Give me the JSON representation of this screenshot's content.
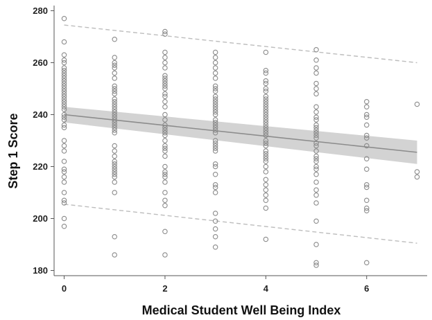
{
  "chart_data": {
    "type": "scatter",
    "title": "",
    "xlabel": "Medical Student Well Being Index",
    "ylabel": "Step 1 Score",
    "xlim": [
      -0.2,
      7.2
    ],
    "ylim": [
      178,
      282
    ],
    "xticks": [
      0,
      2,
      4,
      6
    ],
    "yticks": [
      180,
      200,
      220,
      240,
      260,
      280
    ],
    "grid": false,
    "colors": {
      "points": "#8a8a8a",
      "fit_line": "#8c8c8c",
      "ci_band": "#d3d3d3",
      "prediction_lines": "#bdbdbd"
    },
    "fit_line": {
      "x": [
        0,
        7
      ],
      "y": [
        240,
        225.5
      ]
    },
    "confidence_band": {
      "x": [
        0,
        7
      ],
      "lower": [
        237,
        221
      ],
      "upper": [
        243,
        230
      ]
    },
    "prediction_upper": {
      "x": [
        0,
        7
      ],
      "y": [
        274.5,
        260
      ]
    },
    "prediction_lower": {
      "x": [
        0,
        7
      ],
      "y": [
        205.5,
        190.5
      ]
    },
    "points": [
      [
        0,
        277
      ],
      [
        0,
        268
      ],
      [
        0,
        263
      ],
      [
        0,
        261
      ],
      [
        0,
        260
      ],
      [
        0,
        258
      ],
      [
        0,
        257
      ],
      [
        0,
        256
      ],
      [
        0,
        255
      ],
      [
        0,
        254
      ],
      [
        0,
        253
      ],
      [
        0,
        252
      ],
      [
        0,
        251
      ],
      [
        0,
        250
      ],
      [
        0,
        249
      ],
      [
        0,
        248
      ],
      [
        0,
        247
      ],
      [
        0,
        246
      ],
      [
        0,
        245
      ],
      [
        0,
        244
      ],
      [
        0,
        243
      ],
      [
        0,
        242
      ],
      [
        0,
        240
      ],
      [
        0,
        239
      ],
      [
        0,
        238
      ],
      [
        0,
        236
      ],
      [
        0,
        235
      ],
      [
        0,
        230
      ],
      [
        0,
        228
      ],
      [
        0,
        226
      ],
      [
        0,
        222
      ],
      [
        0,
        219
      ],
      [
        0,
        218
      ],
      [
        0,
        216
      ],
      [
        0,
        214
      ],
      [
        0,
        210
      ],
      [
        0,
        207
      ],
      [
        0,
        206
      ],
      [
        0,
        200
      ],
      [
        0,
        197
      ],
      [
        1,
        269
      ],
      [
        1,
        262
      ],
      [
        1,
        260
      ],
      [
        1,
        259
      ],
      [
        1,
        258
      ],
      [
        1,
        256
      ],
      [
        1,
        254
      ],
      [
        1,
        251
      ],
      [
        1,
        250
      ],
      [
        1,
        249
      ],
      [
        1,
        248
      ],
      [
        1,
        246
      ],
      [
        1,
        245
      ],
      [
        1,
        244
      ],
      [
        1,
        243
      ],
      [
        1,
        242
      ],
      [
        1,
        241
      ],
      [
        1,
        240
      ],
      [
        1,
        239
      ],
      [
        1,
        238
      ],
      [
        1,
        237
      ],
      [
        1,
        236
      ],
      [
        1,
        235
      ],
      [
        1,
        234
      ],
      [
        1,
        233
      ],
      [
        1,
        228
      ],
      [
        1,
        226
      ],
      [
        1,
        224
      ],
      [
        1,
        222
      ],
      [
        1,
        221
      ],
      [
        1,
        220
      ],
      [
        1,
        219
      ],
      [
        1,
        218
      ],
      [
        1,
        217
      ],
      [
        1,
        216
      ],
      [
        1,
        214
      ],
      [
        1,
        210
      ],
      [
        1,
        193
      ],
      [
        1,
        186
      ],
      [
        2,
        272
      ],
      [
        2,
        271
      ],
      [
        2,
        264
      ],
      [
        2,
        262
      ],
      [
        2,
        260
      ],
      [
        2,
        258
      ],
      [
        2,
        255
      ],
      [
        2,
        254
      ],
      [
        2,
        253
      ],
      [
        2,
        252
      ],
      [
        2,
        251
      ],
      [
        2,
        250
      ],
      [
        2,
        248
      ],
      [
        2,
        247
      ],
      [
        2,
        245
      ],
      [
        2,
        243
      ],
      [
        2,
        240
      ],
      [
        2,
        238
      ],
      [
        2,
        236
      ],
      [
        2,
        235
      ],
      [
        2,
        234
      ],
      [
        2,
        233
      ],
      [
        2,
        232
      ],
      [
        2,
        230
      ],
      [
        2,
        228
      ],
      [
        2,
        227
      ],
      [
        2,
        226
      ],
      [
        2,
        224
      ],
      [
        2,
        220
      ],
      [
        2,
        218
      ],
      [
        2,
        217
      ],
      [
        2,
        216
      ],
      [
        2,
        214
      ],
      [
        2,
        210
      ],
      [
        2,
        207
      ],
      [
        2,
        205
      ],
      [
        2,
        195
      ],
      [
        2,
        186
      ],
      [
        3,
        264
      ],
      [
        3,
        262
      ],
      [
        3,
        260
      ],
      [
        3,
        258
      ],
      [
        3,
        256
      ],
      [
        3,
        254
      ],
      [
        3,
        251
      ],
      [
        3,
        250
      ],
      [
        3,
        249
      ],
      [
        3,
        247
      ],
      [
        3,
        246
      ],
      [
        3,
        245
      ],
      [
        3,
        244
      ],
      [
        3,
        243
      ],
      [
        3,
        242
      ],
      [
        3,
        241
      ],
      [
        3,
        240
      ],
      [
        3,
        238
      ],
      [
        3,
        237
      ],
      [
        3,
        236
      ],
      [
        3,
        235
      ],
      [
        3,
        234
      ],
      [
        3,
        233
      ],
      [
        3,
        230
      ],
      [
        3,
        229
      ],
      [
        3,
        228
      ],
      [
        3,
        227
      ],
      [
        3,
        226
      ],
      [
        3,
        221
      ],
      [
        3,
        220
      ],
      [
        3,
        217
      ],
      [
        3,
        213
      ],
      [
        3,
        212
      ],
      [
        3,
        210
      ],
      [
        3,
        202
      ],
      [
        3,
        199
      ],
      [
        3,
        196
      ],
      [
        3,
        193
      ],
      [
        3,
        189
      ],
      [
        4,
        264
      ],
      [
        4,
        257
      ],
      [
        4,
        256
      ],
      [
        4,
        253
      ],
      [
        4,
        252
      ],
      [
        4,
        250
      ],
      [
        4,
        249
      ],
      [
        4,
        247
      ],
      [
        4,
        246
      ],
      [
        4,
        245
      ],
      [
        4,
        244
      ],
      [
        4,
        243
      ],
      [
        4,
        242
      ],
      [
        4,
        241
      ],
      [
        4,
        240
      ],
      [
        4,
        239
      ],
      [
        4,
        238
      ],
      [
        4,
        237
      ],
      [
        4,
        236
      ],
      [
        4,
        235
      ],
      [
        4,
        234
      ],
      [
        4,
        233
      ],
      [
        4,
        232
      ],
      [
        4,
        230
      ],
      [
        4,
        229
      ],
      [
        4,
        228
      ],
      [
        4,
        226
      ],
      [
        4,
        225
      ],
      [
        4,
        224
      ],
      [
        4,
        223
      ],
      [
        4,
        222
      ],
      [
        4,
        220
      ],
      [
        4,
        218
      ],
      [
        4,
        215
      ],
      [
        4,
        213
      ],
      [
        4,
        211
      ],
      [
        4,
        209
      ],
      [
        4,
        207
      ],
      [
        4,
        204
      ],
      [
        4,
        192
      ],
      [
        5,
        265
      ],
      [
        5,
        261
      ],
      [
        5,
        258
      ],
      [
        5,
        256
      ],
      [
        5,
        252
      ],
      [
        5,
        250
      ],
      [
        5,
        248
      ],
      [
        5,
        243
      ],
      [
        5,
        241
      ],
      [
        5,
        239
      ],
      [
        5,
        238
      ],
      [
        5,
        236
      ],
      [
        5,
        235
      ],
      [
        5,
        234
      ],
      [
        5,
        233
      ],
      [
        5,
        232
      ],
      [
        5,
        231
      ],
      [
        5,
        229
      ],
      [
        5,
        228
      ],
      [
        5,
        226
      ],
      [
        5,
        224
      ],
      [
        5,
        223
      ],
      [
        5,
        222
      ],
      [
        5,
        220
      ],
      [
        5,
        219
      ],
      [
        5,
        217
      ],
      [
        5,
        214
      ],
      [
        5,
        211
      ],
      [
        5,
        209
      ],
      [
        5,
        206
      ],
      [
        5,
        199
      ],
      [
        5,
        190
      ],
      [
        5,
        183
      ],
      [
        5,
        182
      ],
      [
        6,
        245
      ],
      [
        6,
        243
      ],
      [
        6,
        240
      ],
      [
        6,
        239
      ],
      [
        6,
        236
      ],
      [
        6,
        232
      ],
      [
        6,
        231
      ],
      [
        6,
        228
      ],
      [
        6,
        223
      ],
      [
        6,
        219
      ],
      [
        6,
        213
      ],
      [
        6,
        212
      ],
      [
        6,
        207
      ],
      [
        6,
        204
      ],
      [
        6,
        203
      ],
      [
        6,
        183
      ],
      [
        7,
        244
      ],
      [
        7,
        218
      ],
      [
        7,
        216
      ]
    ]
  }
}
